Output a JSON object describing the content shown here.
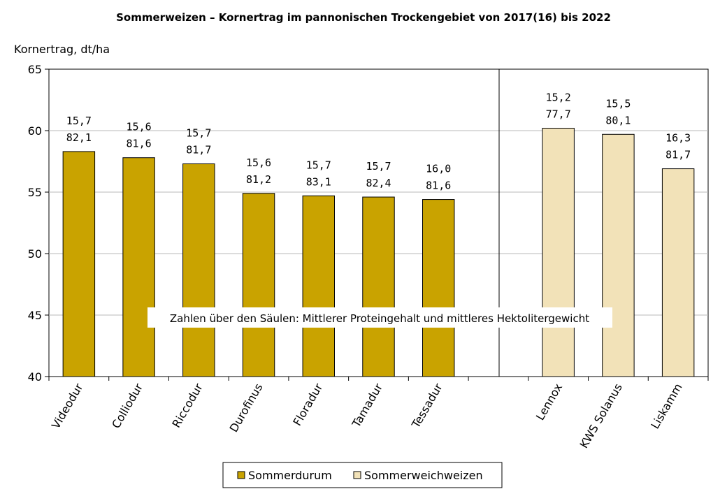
{
  "chart_data": {
    "type": "bar",
    "title": "Sommerweizen – Kornertrag im pannonischen Trockengebiet von 2017(16) bis 2022",
    "ylabel": "Kornertrag, dt/ha",
    "ylim": [
      40,
      65
    ],
    "yticks": [
      40,
      45,
      50,
      55,
      60,
      65
    ],
    "grid": true,
    "legend_position": "bottom",
    "note": "Zahlen über den Säulen: Mittlerer Proteingehalt und mittleres Hektolitergewicht",
    "series": [
      {
        "name": "Sommerdurum",
        "color": "#C9A300",
        "categories": [
          "Videodur",
          "Colliodur",
          "Riccodur",
          "Durofinus",
          "Floradur",
          "Tamadur",
          "Tessadur"
        ],
        "values": [
          58.3,
          57.8,
          57.3,
          54.9,
          54.7,
          54.6,
          54.4
        ],
        "labels_protein": [
          "15,7",
          "15,6",
          "15,7",
          "15,6",
          "15,7",
          "15,7",
          "16,0"
        ],
        "labels_hectoliter": [
          "82,1",
          "81,6",
          "81,7",
          "81,2",
          "83,1",
          "82,4",
          "81,6"
        ]
      },
      {
        "name": "Sommerweichweizen",
        "color": "#F2E2B8",
        "categories": [
          "Lennox",
          "KWS Solanus",
          "Liskamm"
        ],
        "values": [
          60.2,
          59.7,
          56.9
        ],
        "labels_protein": [
          "15,2",
          "15,5",
          "16,3"
        ],
        "labels_hectoliter": [
          "77,7",
          "80,1",
          "81,7"
        ]
      }
    ]
  }
}
